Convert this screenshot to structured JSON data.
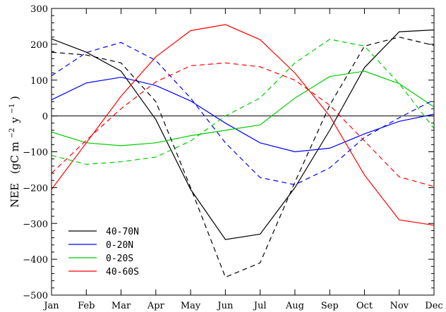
{
  "chart_data": {
    "type": "line",
    "title": "",
    "xlabel": "",
    "ylabel_main": "NEE",
    "ylabel_unit_prefix": "(gC m",
    "ylabel_exp1": "−2",
    "ylabel_unit_mid": "y",
    "ylabel_exp2": "−1",
    "ylabel_unit_suffix": ")",
    "ylim": [
      -500,
      300
    ],
    "yticks": [
      -500,
      -400,
      -300,
      -200,
      -100,
      0,
      100,
      200,
      300
    ],
    "categories": [
      "Jan",
      "Feb",
      "Mar",
      "Apr",
      "May",
      "Jun",
      "Jul",
      "Aug",
      "Sep",
      "Oct",
      "Nov",
      "Dec"
    ],
    "legend_position": "bottom-left",
    "zero_line": true,
    "series": [
      {
        "name": "40-70N",
        "color": "#000000",
        "style": "solid",
        "in_legend": true,
        "values": [
          215,
          178,
          125,
          -10,
          -205,
          -345,
          -330,
          -200,
          -40,
          135,
          235,
          240
        ]
      },
      {
        "name": "0-20N",
        "color": "#0000ff",
        "style": "solid",
        "in_legend": true,
        "values": [
          45,
          92,
          108,
          85,
          42,
          -20,
          -75,
          -100,
          -90,
          -50,
          -15,
          5
        ]
      },
      {
        "name": "0-20S",
        "color": "#00cc00",
        "style": "solid",
        "in_legend": true,
        "values": [
          -45,
          -75,
          -83,
          -75,
          -55,
          -40,
          -25,
          50,
          110,
          125,
          90,
          25
        ]
      },
      {
        "name": "40-60S",
        "color": "#ff0000",
        "style": "solid",
        "in_legend": true,
        "values": [
          -205,
          -75,
          55,
          165,
          238,
          255,
          213,
          120,
          0,
          -165,
          -290,
          -305
        ]
      },
      {
        "name": "",
        "color": "#000000",
        "style": "dashed",
        "in_legend": false,
        "values": [
          178,
          170,
          148,
          40,
          -200,
          -450,
          -410,
          -185,
          30,
          195,
          220,
          197
        ]
      },
      {
        "name": "",
        "color": "#0000ff",
        "style": "dashed",
        "in_legend": false,
        "values": [
          112,
          177,
          205,
          155,
          50,
          -75,
          -172,
          -192,
          -145,
          -60,
          -5,
          45
        ]
      },
      {
        "name": "",
        "color": "#00cc00",
        "style": "dashed",
        "in_legend": false,
        "values": [
          -110,
          -135,
          -128,
          -115,
          -70,
          0,
          50,
          148,
          214,
          195,
          90,
          -35
        ]
      },
      {
        "name": "",
        "color": "#ff0000",
        "style": "dashed",
        "in_legend": false,
        "values": [
          -160,
          -68,
          20,
          95,
          140,
          148,
          137,
          100,
          30,
          -70,
          -170,
          -197
        ]
      }
    ]
  }
}
